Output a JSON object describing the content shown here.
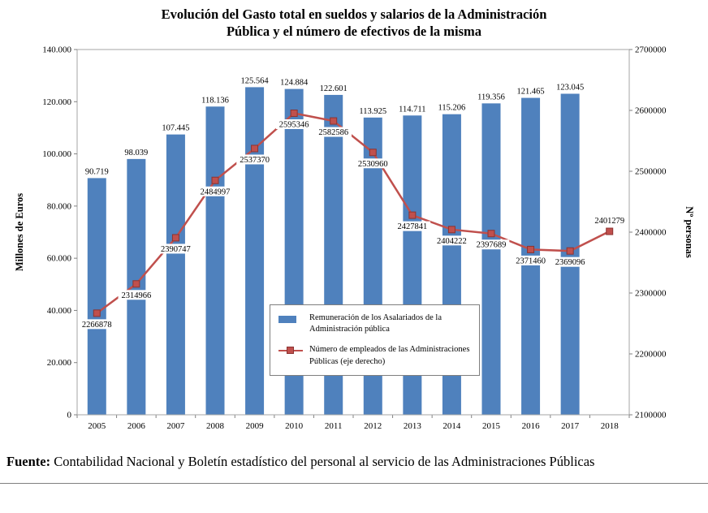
{
  "header": {
    "line1": "Evolución del Gasto total en sueldos y salarios de la Administración",
    "line2": "Pública y el número de efectivos de la misma"
  },
  "chart_data": {
    "type": "combo",
    "title": "Evolución del Gasto total en sueldos y salarios de la Administración Pública y el número de efectivos de la misma",
    "categories": [
      "2005",
      "2006",
      "2007",
      "2008",
      "2009",
      "2010",
      "2011",
      "2012",
      "2013",
      "2014",
      "2015",
      "2016",
      "2017",
      "2018"
    ],
    "series": [
      {
        "name": "Remuneración de los Asalariados de la Administración pública",
        "type": "bar",
        "axis": "left",
        "color": "#4f81bd",
        "values": [
          90719,
          98039,
          107445,
          118136,
          125564,
          124884,
          122601,
          113925,
          114711,
          115206,
          119356,
          121465,
          123045,
          null
        ],
        "labels": [
          "90.719",
          "98.039",
          "107.445",
          "118.136",
          "125.564",
          "124.884",
          "122.601",
          "113.925",
          "114.711",
          "115.206",
          "119.356",
          "121.465",
          "123.045",
          ""
        ]
      },
      {
        "name": "Número de empleados de las Administraciones Públicas (eje derecho)",
        "type": "line",
        "axis": "right",
        "color": "#c0504d",
        "marker_border": "#8c3331",
        "values": [
          2266878,
          2314966,
          2390747,
          2484997,
          2537370,
          2595346,
          2582586,
          2530960,
          2427841,
          2404222,
          2397689,
          2371460,
          2369096,
          2401279
        ],
        "labels": [
          "2266878",
          "2314966",
          "2390747",
          "2484997",
          "2537370",
          "2595346",
          "2582586",
          "2530960",
          "2427841",
          "2404222",
          "2397689",
          "2371460",
          "2369096",
          "2401279"
        ]
      }
    ],
    "left_axis": {
      "label": "Millones de Euros",
      "min": 0,
      "max": 140000,
      "step": 20000,
      "tick_labels": [
        "0",
        "20.000",
        "40.000",
        "60.000",
        "80.000",
        "100.000",
        "120.000",
        "140.000"
      ]
    },
    "right_axis": {
      "label": "Nº personas",
      "min": 2100000,
      "max": 2700000,
      "step": 100000,
      "tick_labels": [
        "2100000",
        "2200000",
        "2300000",
        "2400000",
        "2500000",
        "2600000",
        "2700000"
      ]
    },
    "legend": [
      {
        "line1": "Remuneración de los Asalariados de la",
        "line2": "Administración pública"
      },
      {
        "line1": "Número de empleados de las Administraciones",
        "line2": "Públicas (eje derecho)"
      }
    ],
    "grid": false,
    "legend_position": "inside-lower-middle"
  },
  "footer": {
    "label": "Fuente:",
    "text": "Contabilidad Nacional y Boletín estadístico del personal al servicio de las Administraciones Públicas"
  }
}
